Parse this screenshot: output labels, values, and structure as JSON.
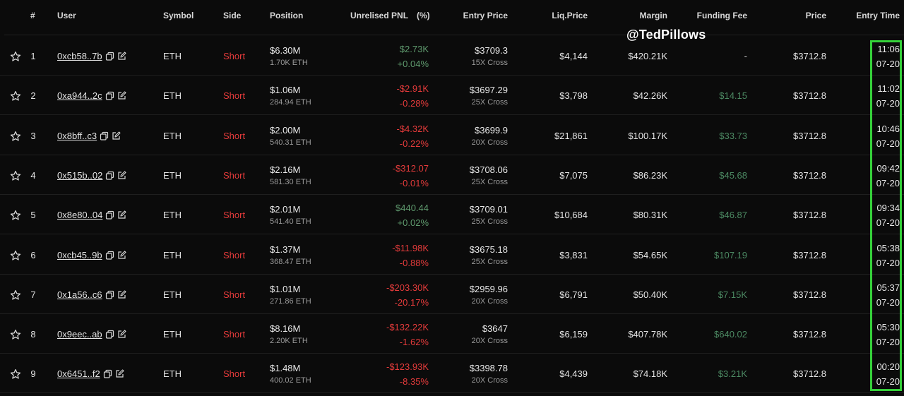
{
  "header": {
    "idx": "#",
    "user": "User",
    "symbol": "Symbol",
    "side": "Side",
    "position": "Position",
    "pnl": "Unrelised PNL",
    "pnl_pct": "(%)",
    "entry_price": "Entry Price",
    "liq_price": "Liq.Price",
    "margin": "Margin",
    "funding_fee": "Funding Fee",
    "price": "Price",
    "entry_time": "Entry Time"
  },
  "watermark": "@TedPillows",
  "colors": {
    "background": "#0b0b0b",
    "short": "#e53b3b",
    "positive": "#5f9a6e",
    "negative": "#e53b3b",
    "fee": "#4c8a63",
    "highlight": "#35d13a"
  },
  "rows": [
    {
      "idx": "1",
      "user": "0xcb58..7b",
      "symbol": "ETH",
      "side": "Short",
      "position": "$6.30M",
      "position_eth": "1.70K ETH",
      "pnl": "$2.73K",
      "pnl_pct": "+0.04%",
      "pnl_sign": "pos",
      "entry": "$3709.3",
      "leverage": "15X Cross",
      "liq": "$4,144",
      "margin": "$420.21K",
      "fee": "-",
      "fee_kind": "none",
      "price": "$3712.8",
      "time": "11:06",
      "date": "07-20"
    },
    {
      "idx": "2",
      "user": "0xa944..2c",
      "symbol": "ETH",
      "side": "Short",
      "position": "$1.06M",
      "position_eth": "284.94 ETH",
      "pnl": "-$2.91K",
      "pnl_pct": "-0.28%",
      "pnl_sign": "neg",
      "entry": "$3697.29",
      "leverage": "25X Cross",
      "liq": "$3,798",
      "margin": "$42.26K",
      "fee": "$14.15",
      "fee_kind": "green",
      "price": "$3712.8",
      "time": "11:02",
      "date": "07-20"
    },
    {
      "idx": "3",
      "user": "0x8bff..c3",
      "symbol": "ETH",
      "side": "Short",
      "position": "$2.00M",
      "position_eth": "540.31 ETH",
      "pnl": "-$4.32K",
      "pnl_pct": "-0.22%",
      "pnl_sign": "neg",
      "entry": "$3699.9",
      "leverage": "20X Cross",
      "liq": "$21,861",
      "margin": "$100.17K",
      "fee": "$33.73",
      "fee_kind": "green",
      "price": "$3712.8",
      "time": "10:46",
      "date": "07-20"
    },
    {
      "idx": "4",
      "user": "0x515b..02",
      "symbol": "ETH",
      "side": "Short",
      "position": "$2.16M",
      "position_eth": "581.30 ETH",
      "pnl": "-$312.07",
      "pnl_pct": "-0.01%",
      "pnl_sign": "neg",
      "entry": "$3708.06",
      "leverage": "25X Cross",
      "liq": "$7,075",
      "margin": "$86.23K",
      "fee": "$45.68",
      "fee_kind": "green",
      "price": "$3712.8",
      "time": "09:42",
      "date": "07-20"
    },
    {
      "idx": "5",
      "user": "0x8e80..04",
      "symbol": "ETH",
      "side": "Short",
      "position": "$2.01M",
      "position_eth": "541.40 ETH",
      "pnl": "$440.44",
      "pnl_pct": "+0.02%",
      "pnl_sign": "pos",
      "entry": "$3709.01",
      "leverage": "25X Cross",
      "liq": "$10,684",
      "margin": "$80.31K",
      "fee": "$46.87",
      "fee_kind": "green",
      "price": "$3712.8",
      "time": "09:34",
      "date": "07-20"
    },
    {
      "idx": "6",
      "user": "0xcb45..9b",
      "symbol": "ETH",
      "side": "Short",
      "position": "$1.37M",
      "position_eth": "368.47 ETH",
      "pnl": "-$11.98K",
      "pnl_pct": "-0.88%",
      "pnl_sign": "neg",
      "entry": "$3675.18",
      "leverage": "25X Cross",
      "liq": "$3,831",
      "margin": "$54.65K",
      "fee": "$107.19",
      "fee_kind": "green",
      "price": "$3712.8",
      "time": "05:38",
      "date": "07-20"
    },
    {
      "idx": "7",
      "user": "0x1a56..c6",
      "symbol": "ETH",
      "side": "Short",
      "position": "$1.01M",
      "position_eth": "271.86 ETH",
      "pnl": "-$203.30K",
      "pnl_pct": "-20.17%",
      "pnl_sign": "neg",
      "entry": "$2959.96",
      "leverage": "20X Cross",
      "liq": "$6,791",
      "margin": "$50.40K",
      "fee": "$7.15K",
      "fee_kind": "green",
      "price": "$3712.8",
      "time": "05:37",
      "date": "07-20"
    },
    {
      "idx": "8",
      "user": "0x9eec..ab",
      "symbol": "ETH",
      "side": "Short",
      "position": "$8.16M",
      "position_eth": "2.20K ETH",
      "pnl": "-$132.22K",
      "pnl_pct": "-1.62%",
      "pnl_sign": "neg",
      "entry": "$3647",
      "leverage": "20X Cross",
      "liq": "$6,159",
      "margin": "$407.78K",
      "fee": "$640.02",
      "fee_kind": "green",
      "price": "$3712.8",
      "time": "05:30",
      "date": "07-20"
    },
    {
      "idx": "9",
      "user": "0x6451..f2",
      "symbol": "ETH",
      "side": "Short",
      "position": "$1.48M",
      "position_eth": "400.02 ETH",
      "pnl": "-$123.93K",
      "pnl_pct": "-8.35%",
      "pnl_sign": "neg",
      "entry": "$3398.78",
      "leverage": "20X Cross",
      "liq": "$4,439",
      "margin": "$74.18K",
      "fee": "$3.21K",
      "fee_kind": "green",
      "price": "$3712.8",
      "time": "00:20",
      "date": "07-20"
    }
  ]
}
